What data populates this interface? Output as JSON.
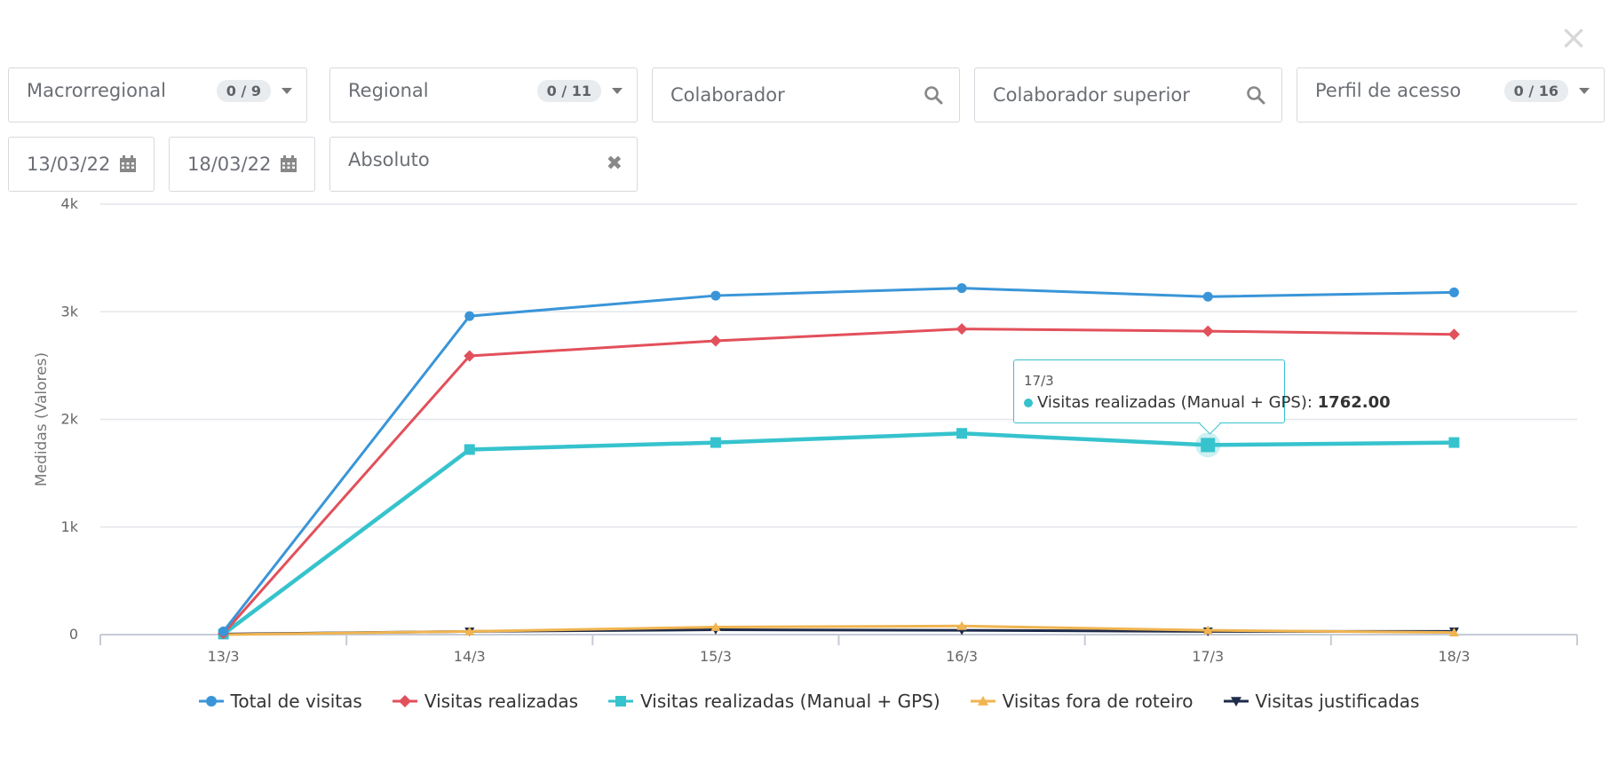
{
  "close": {
    "icon": "close-icon"
  },
  "filters": {
    "macrorregional": {
      "label": "Macrorregional",
      "badge": "0 / 9"
    },
    "regional": {
      "label": "Regional",
      "badge": "0 / 11"
    },
    "colaborador": {
      "placeholder": "Colaborador"
    },
    "colaborador_superior": {
      "placeholder": "Colaborador superior"
    },
    "perfil": {
      "label": "Perfil de acesso",
      "badge": "0 / 16"
    },
    "date_start": "13/03/22",
    "date_end": "18/03/22",
    "mode": "Absoluto"
  },
  "chart_data": {
    "type": "line",
    "categories": [
      "13/3",
      "14/3",
      "15/3",
      "16/3",
      "17/3",
      "18/3"
    ],
    "ylabel": "Medidas (Valores)",
    "ylim": [
      0,
      4000
    ],
    "yticks": [
      "0",
      "1k",
      "2k",
      "3k",
      "4k"
    ],
    "grid": true,
    "legend_position": "bottom",
    "series": [
      {
        "name": "Total de visitas",
        "color": "#3a95d8",
        "marker": "circle",
        "values": [
          30,
          2960,
          3150,
          3220,
          3140,
          3180
        ]
      },
      {
        "name": "Visitas realizadas",
        "color": "#e2505b",
        "marker": "diamond",
        "values": [
          10,
          2590,
          2730,
          2840,
          2820,
          2790
        ]
      },
      {
        "name": "Visitas realizadas (Manual + GPS)",
        "color": "#36c3cd",
        "marker": "square",
        "values": [
          5,
          1720,
          1785,
          1870,
          1762,
          1785
        ]
      },
      {
        "name": "Visitas fora de roteiro",
        "color": "#f0b450",
        "marker": "triangle",
        "values": [
          0,
          30,
          70,
          80,
          40,
          20
        ]
      },
      {
        "name": "Visitas justificadas",
        "color": "#1f2b4a",
        "marker": "triangle-down",
        "values": [
          5,
          30,
          45,
          40,
          30,
          30
        ]
      }
    ],
    "tooltip": {
      "category": "17/3",
      "series": "Visitas realizadas (Manual + GPS)",
      "value": "1762.00"
    }
  }
}
